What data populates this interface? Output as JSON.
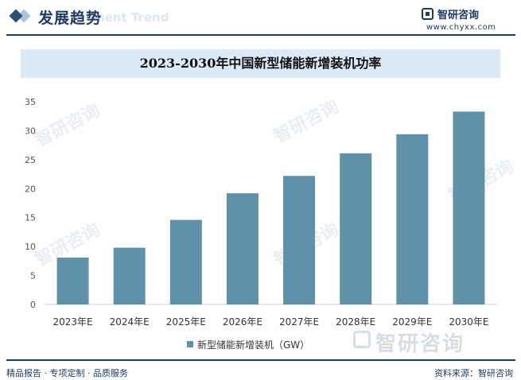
{
  "header": {
    "section_title": "发展趋势",
    "section_subtitle": "ment Trend",
    "logo_name": "智研咨询",
    "logo_url": "www.chyxx.com"
  },
  "watermark": {
    "text": "智研咨询"
  },
  "footer": {
    "left_text": "精品报告 · 专项定制 · 品质服务",
    "right_text": "资料来源：智研咨询"
  },
  "colors": {
    "bar": "#5f91a8",
    "brand": "#1f3b63",
    "title_band": "#dbeaf5"
  },
  "chart_data": {
    "type": "bar",
    "title": "2023-2030年中国新型储能新增装机功率",
    "categories": [
      "2023年E",
      "2024年E",
      "2025年E",
      "2026年E",
      "2027年E",
      "2028年E",
      "2029年E",
      "2030年E"
    ],
    "series": [
      {
        "name": "新型储能新增装机（GW）",
        "values": [
          8.1,
          9.8,
          14.6,
          19.2,
          22.2,
          26.1,
          29.4,
          33.3
        ]
      }
    ],
    "ylim": [
      0,
      35
    ],
    "yticks": [
      0,
      5,
      10,
      15,
      20,
      25,
      30,
      35
    ],
    "xlabel": "",
    "ylabel": "",
    "grid": false,
    "legend_position": "bottom"
  }
}
